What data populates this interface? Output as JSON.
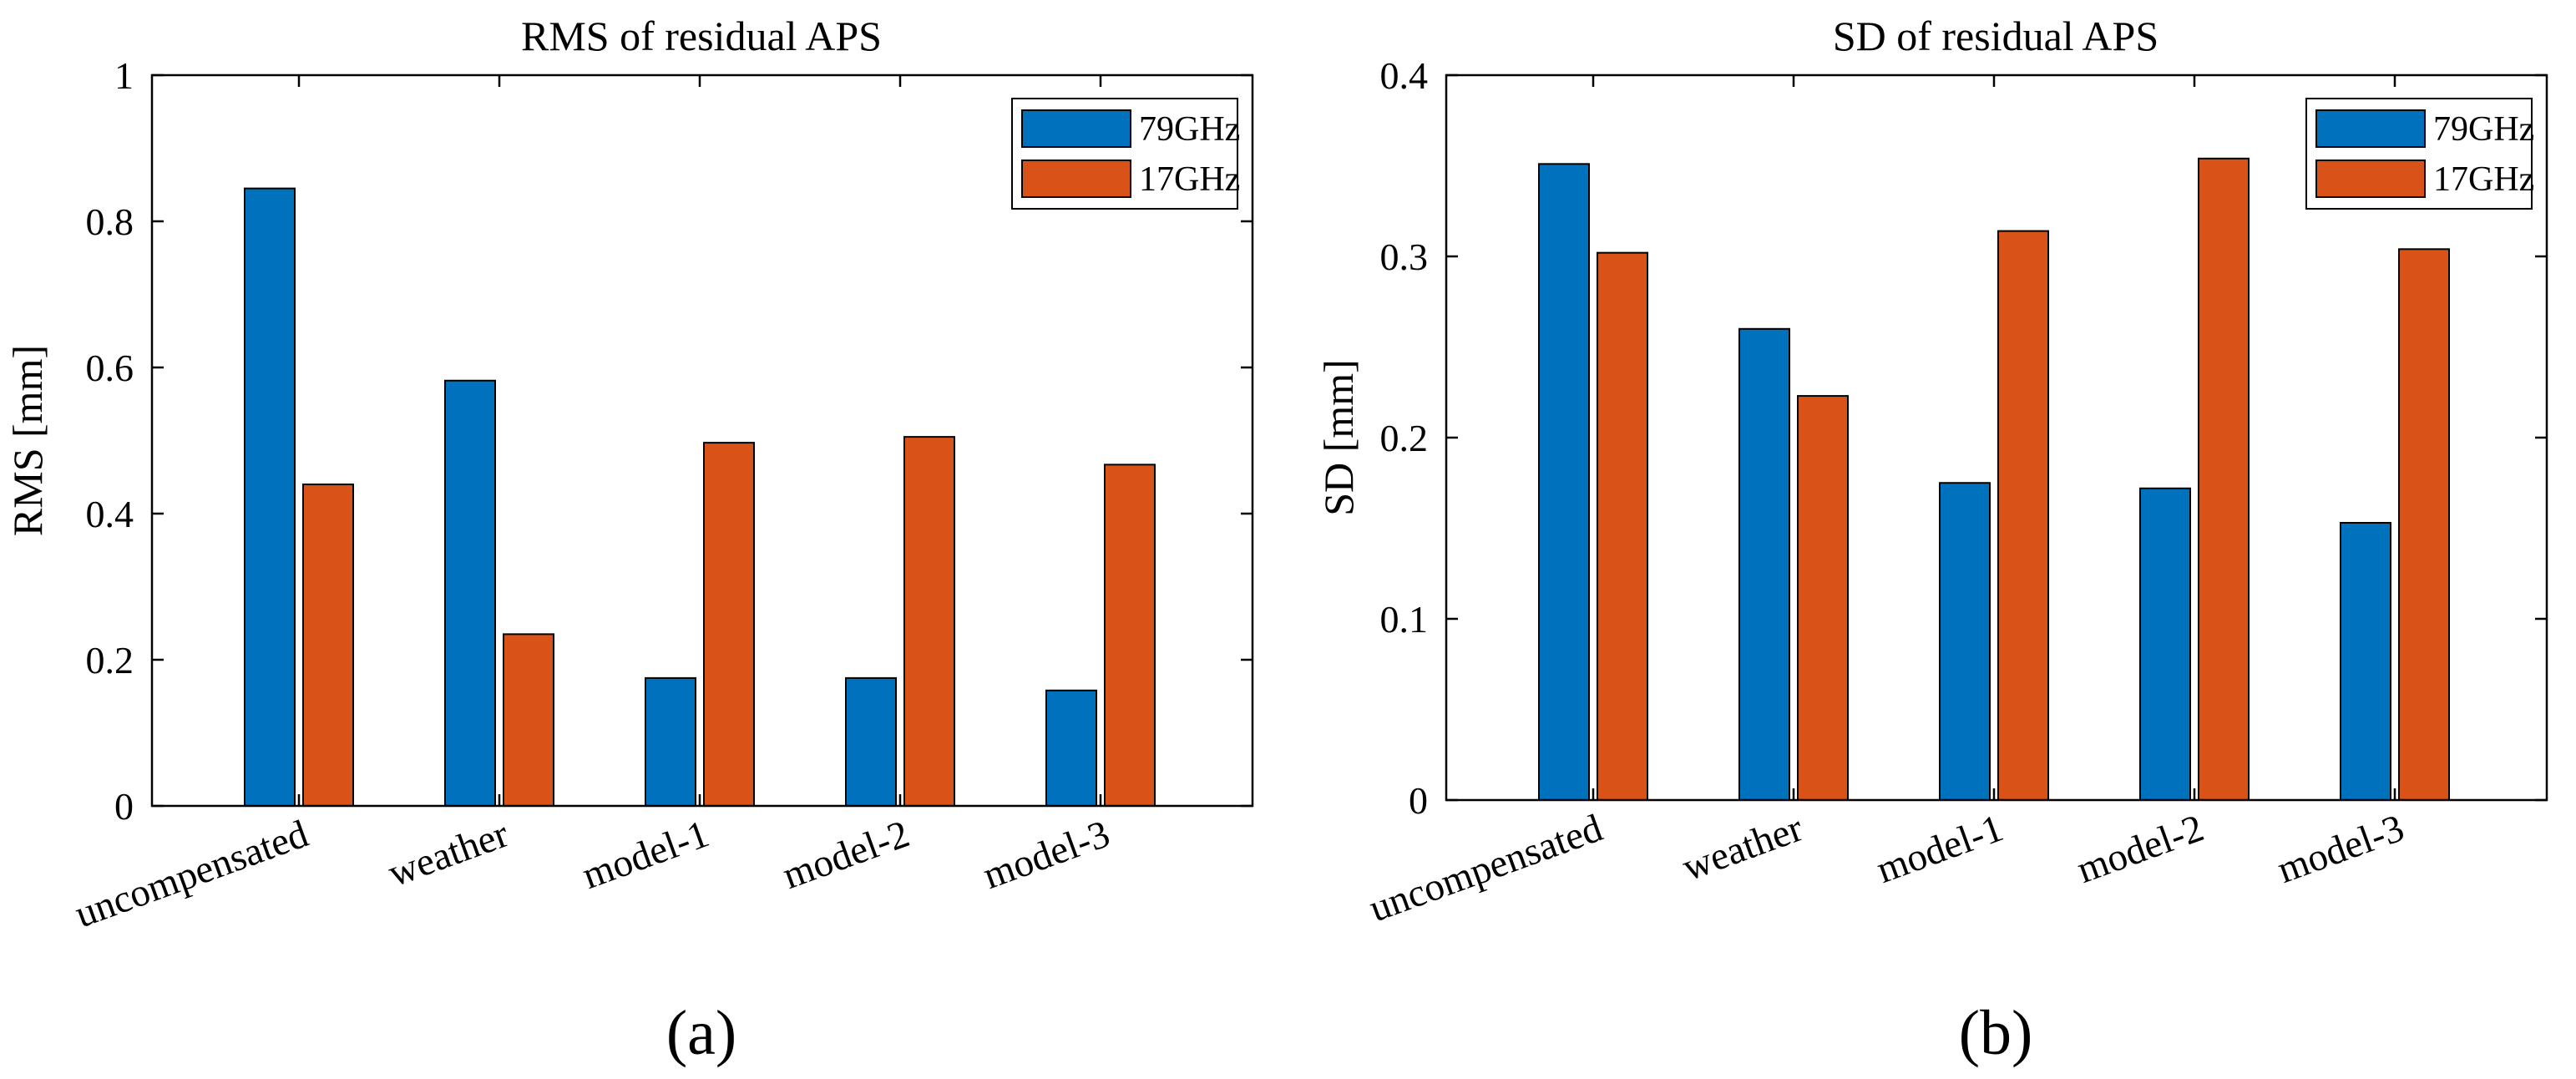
{
  "colors": {
    "series_79": "#0072BD",
    "series_17": "#D95319",
    "axis": "#000000",
    "background": "#ffffff"
  },
  "chart_data": [
    {
      "type": "bar",
      "title": "RMS of residual APS",
      "ylabel": "RMS [mm]",
      "xlabel": "",
      "ylim": [
        0,
        1
      ],
      "yticks": [
        0,
        0.2,
        0.4,
        0.6,
        0.8,
        1
      ],
      "ytick_labels": [
        "0",
        "0.2",
        "0.4",
        "0.6",
        "0.8",
        "1"
      ],
      "categories": [
        "uncompensated",
        "weather",
        "model-1",
        "model-2",
        "model-3"
      ],
      "series": [
        {
          "name": "79GHz",
          "values": [
            0.845,
            0.582,
            0.175,
            0.175,
            0.158
          ]
        },
        {
          "name": "17GHz",
          "values": [
            0.44,
            0.235,
            0.497,
            0.505,
            0.467
          ]
        }
      ],
      "legend": "top-right",
      "grid": false,
      "panel_label": "(a)"
    },
    {
      "type": "bar",
      "title": "SD of residual APS",
      "ylabel": "SD [mm]",
      "xlabel": "",
      "ylim": [
        0,
        0.4
      ],
      "yticks": [
        0,
        0.1,
        0.2,
        0.3,
        0.4
      ],
      "ytick_labels": [
        "0",
        "0.1",
        "0.2",
        "0.3",
        "0.4"
      ],
      "categories": [
        "uncompensated",
        "weather",
        "model-1",
        "model-2",
        "model-3"
      ],
      "series": [
        {
          "name": "79GHz",
          "values": [
            0.351,
            0.26,
            0.175,
            0.172,
            0.153
          ]
        },
        {
          "name": "17GHz",
          "values": [
            0.302,
            0.223,
            0.314,
            0.354,
            0.304
          ]
        }
      ],
      "legend": "top-right",
      "grid": false,
      "panel_label": "(b)"
    }
  ]
}
